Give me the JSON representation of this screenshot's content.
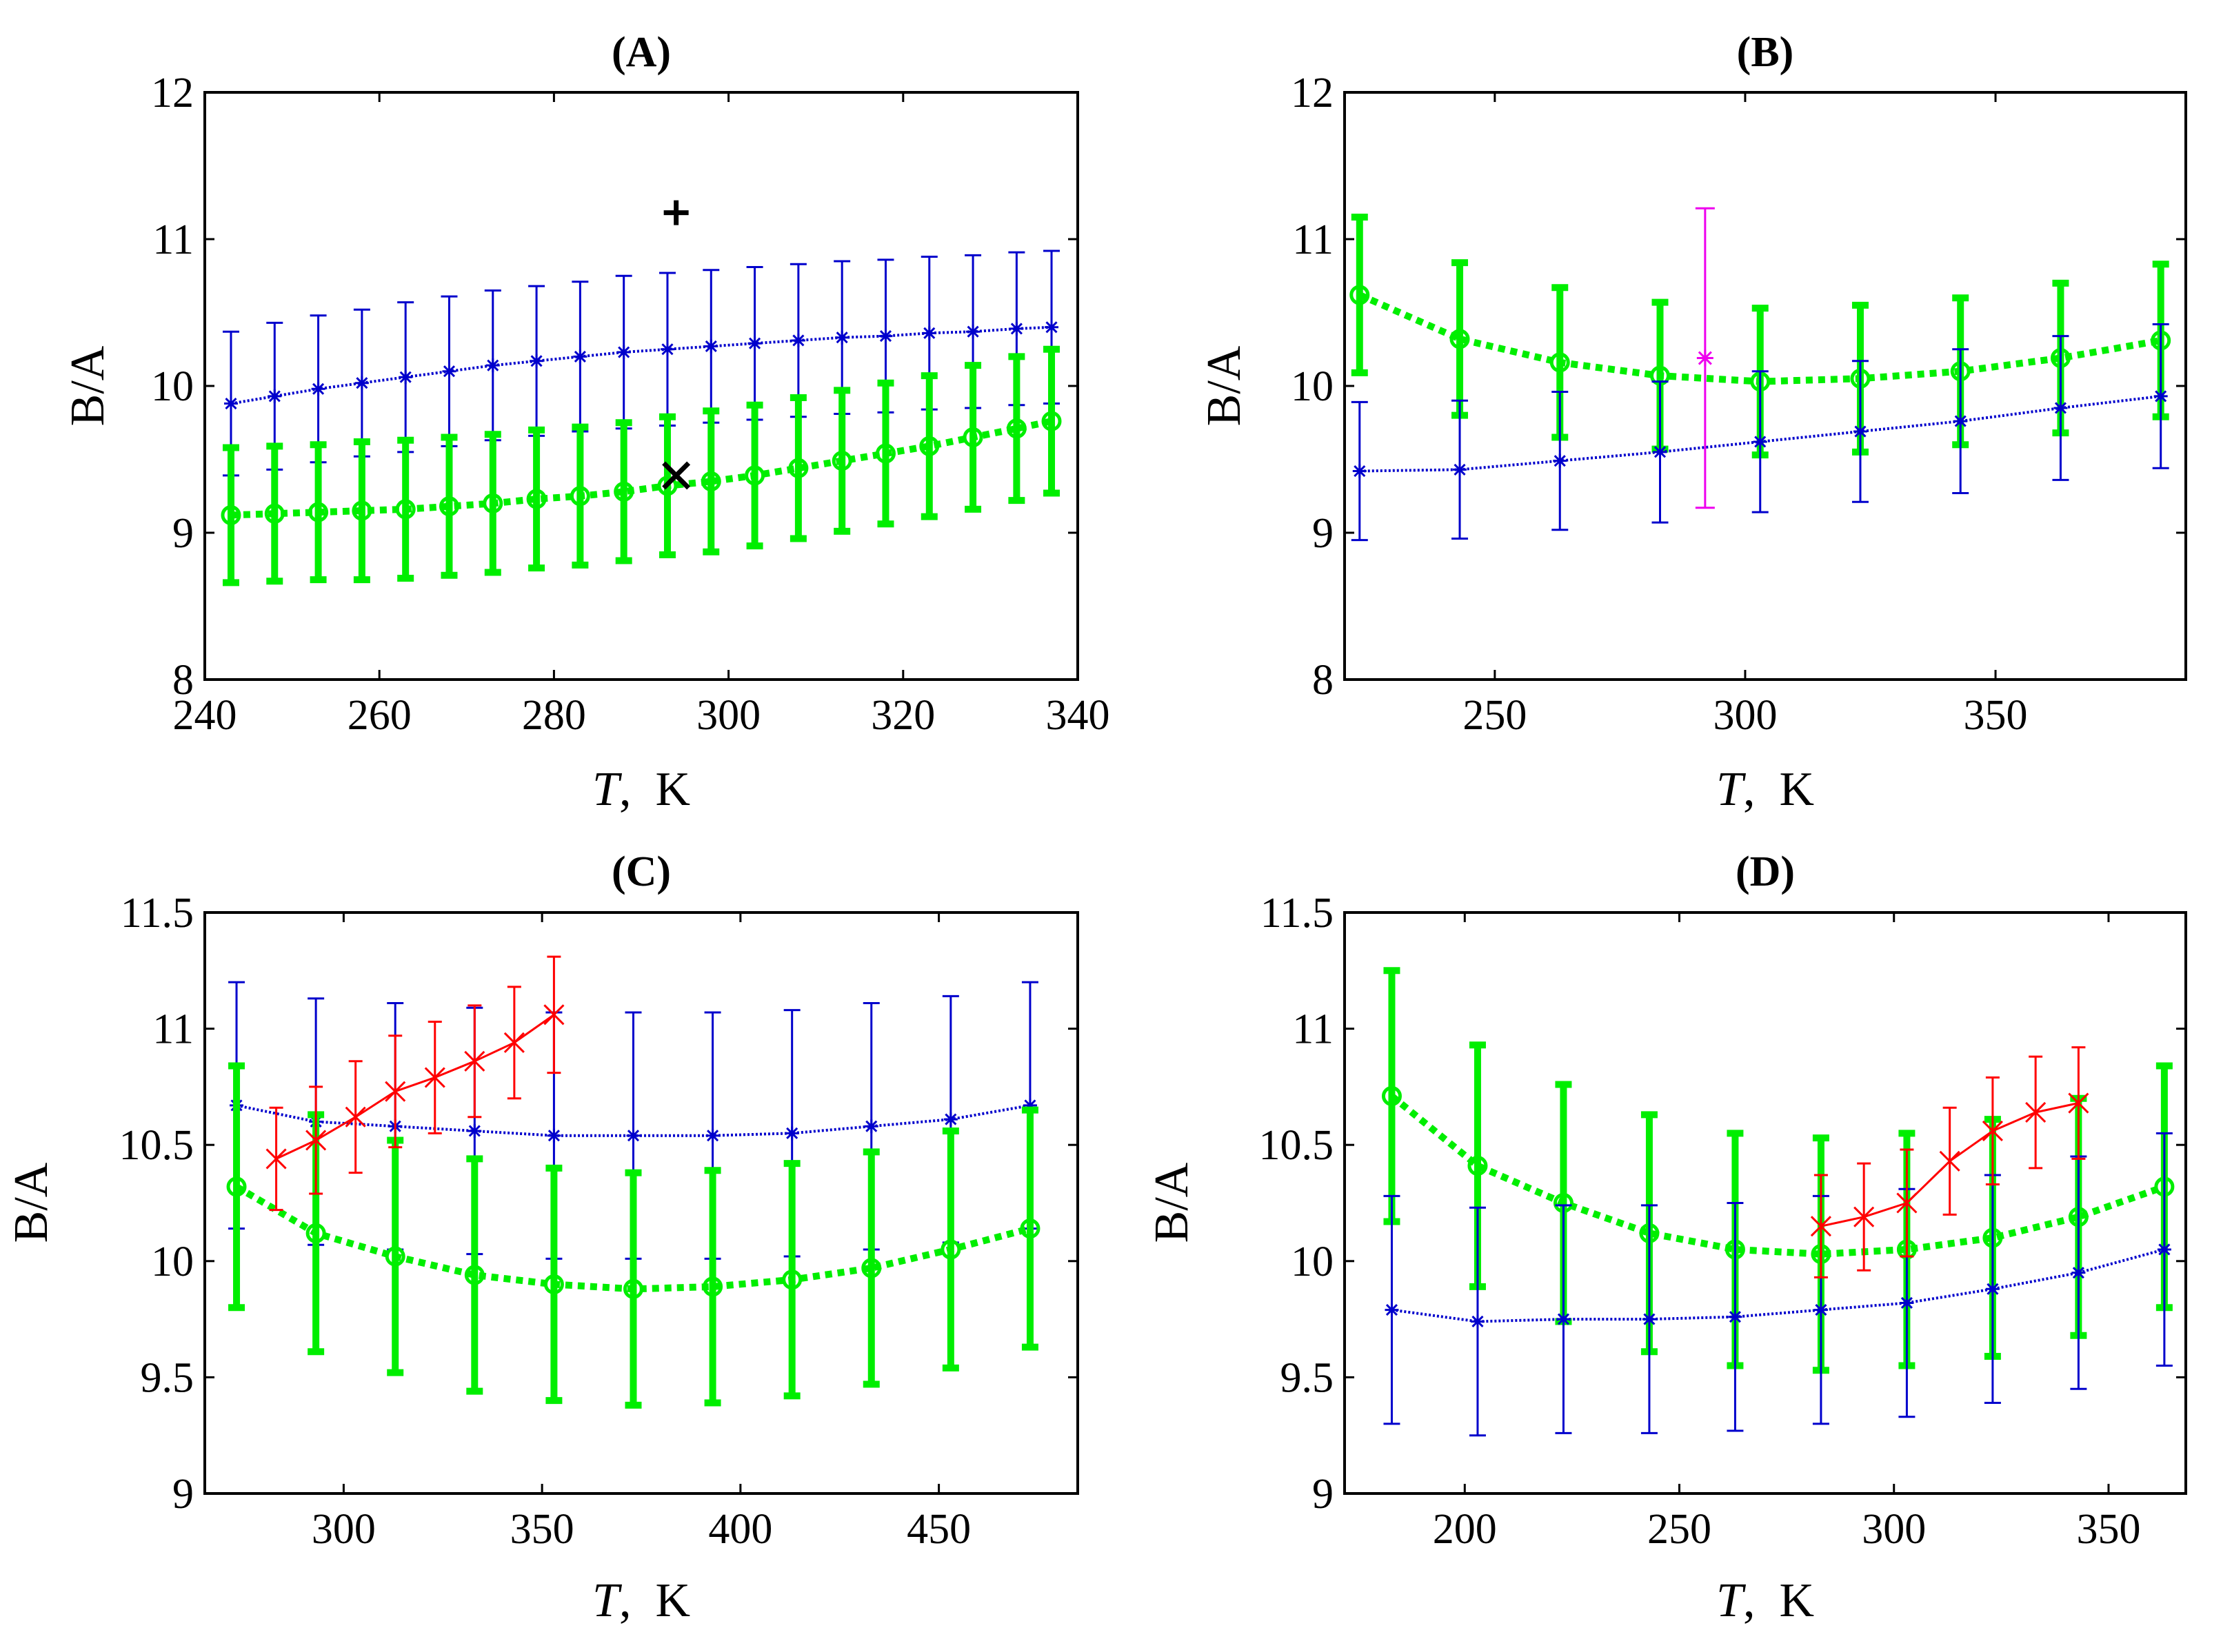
{
  "chart_data": [
    {
      "panel": "A",
      "type": "line",
      "title": "(A)",
      "xlabel_var": "T",
      "xlabel_unit": ",  K",
      "ylabel": "B/A",
      "xlim": [
        240,
        340
      ],
      "ylim": [
        8,
        12
      ],
      "xticks": [
        240,
        260,
        280,
        300,
        320,
        340
      ],
      "yticks": [
        8,
        9,
        10,
        11,
        12
      ],
      "series": [
        {
          "name": "blue",
          "color": "#0000cc",
          "style": "blue",
          "x": [
            243,
            248,
            253,
            258,
            263,
            268,
            273,
            278,
            283,
            288,
            293,
            298,
            303,
            308,
            313,
            318,
            323,
            328,
            333,
            337
          ],
          "y": [
            9.88,
            9.93,
            9.98,
            10.02,
            10.06,
            10.1,
            10.14,
            10.17,
            10.2,
            10.23,
            10.25,
            10.27,
            10.29,
            10.31,
            10.33,
            10.34,
            10.36,
            10.37,
            10.39,
            10.4
          ],
          "err": [
            0.49,
            0.5,
            0.5,
            0.5,
            0.51,
            0.51,
            0.51,
            0.51,
            0.51,
            0.52,
            0.52,
            0.52,
            0.52,
            0.52,
            0.52,
            0.52,
            0.52,
            0.52,
            0.52,
            0.52
          ]
        },
        {
          "name": "green",
          "color": "#00ee00",
          "style": "green",
          "x": [
            243,
            248,
            253,
            258,
            263,
            268,
            273,
            278,
            283,
            288,
            293,
            298,
            303,
            308,
            313,
            318,
            323,
            328,
            333,
            337
          ],
          "y": [
            9.12,
            9.13,
            9.14,
            9.15,
            9.16,
            9.18,
            9.2,
            9.23,
            9.25,
            9.28,
            9.32,
            9.35,
            9.39,
            9.44,
            9.49,
            9.54,
            9.59,
            9.65,
            9.71,
            9.76
          ],
          "err": [
            0.46,
            0.46,
            0.46,
            0.47,
            0.47,
            0.47,
            0.47,
            0.47,
            0.47,
            0.47,
            0.47,
            0.48,
            0.48,
            0.48,
            0.48,
            0.48,
            0.48,
            0.49,
            0.49,
            0.49
          ]
        }
      ],
      "markers": [
        {
          "symbol": "+",
          "color": "#000000",
          "x": 294,
          "y": 11.18
        },
        {
          "symbol": "×",
          "color": "#000000",
          "x": 294,
          "y": 9.39
        }
      ]
    },
    {
      "panel": "B",
      "type": "line",
      "title": "(B)",
      "xlabel_var": "T",
      "xlabel_unit": ",  K",
      "ylabel": "B/A",
      "xlim": [
        220,
        388
      ],
      "ylim": [
        8,
        12
      ],
      "xticks": [
        250,
        300,
        350
      ],
      "yticks": [
        8,
        9,
        10,
        11,
        12
      ],
      "series": [
        {
          "name": "green",
          "color": "#00ee00",
          "style": "green",
          "x": [
            223,
            243,
            263,
            283,
            303,
            323,
            343,
            363,
            383
          ],
          "y": [
            10.62,
            10.32,
            10.16,
            10.07,
            10.03,
            10.05,
            10.1,
            10.19,
            10.31
          ],
          "err": [
            0.53,
            0.52,
            0.51,
            0.5,
            0.5,
            0.5,
            0.5,
            0.51,
            0.52
          ]
        },
        {
          "name": "blue",
          "color": "#0000cc",
          "style": "blue",
          "x": [
            223,
            243,
            263,
            283,
            303,
            323,
            343,
            363,
            383
          ],
          "y": [
            9.42,
            9.43,
            9.49,
            9.55,
            9.62,
            9.69,
            9.76,
            9.85,
            9.93
          ],
          "err": [
            0.47,
            0.47,
            0.47,
            0.48,
            0.48,
            0.48,
            0.49,
            0.49,
            0.49
          ]
        },
        {
          "name": "magenta",
          "color": "#ee00ee",
          "style": "magenta",
          "x": [
            292
          ],
          "y": [
            10.19
          ],
          "err": [
            1.02
          ]
        }
      ],
      "markers": []
    },
    {
      "panel": "C",
      "type": "line",
      "title": "(C)",
      "xlabel_var": "T",
      "xlabel_unit": ",  K",
      "ylabel": "B/A",
      "xlim": [
        265,
        485
      ],
      "ylim": [
        9,
        11.5
      ],
      "xticks": [
        300,
        350,
        400,
        450
      ],
      "yticks": [
        9,
        9.5,
        10,
        10.5,
        11,
        11.5
      ],
      "series": [
        {
          "name": "blue",
          "color": "#0000cc",
          "style": "blue",
          "x": [
            273,
            293,
            313,
            333,
            353,
            373,
            393,
            413,
            433,
            453,
            473
          ],
          "y": [
            10.67,
            10.6,
            10.58,
            10.56,
            10.54,
            10.54,
            10.54,
            10.55,
            10.58,
            10.61,
            10.67
          ],
          "err": [
            0.53,
            0.53,
            0.53,
            0.53,
            0.53,
            0.53,
            0.53,
            0.53,
            0.53,
            0.53,
            0.53
          ]
        },
        {
          "name": "green",
          "color": "#00ee00",
          "style": "green",
          "x": [
            273,
            293,
            313,
            333,
            353,
            373,
            393,
            413,
            433,
            453,
            473
          ],
          "y": [
            10.32,
            10.12,
            10.02,
            9.94,
            9.9,
            9.88,
            9.89,
            9.92,
            9.97,
            10.05,
            10.14
          ],
          "err": [
            0.52,
            0.51,
            0.5,
            0.5,
            0.5,
            0.5,
            0.5,
            0.5,
            0.5,
            0.51,
            0.51
          ]
        },
        {
          "name": "red",
          "color": "#ff0000",
          "style": "red",
          "x": [
            283,
            293,
            303,
            313,
            323,
            333,
            343,
            353
          ],
          "y": [
            10.44,
            10.52,
            10.62,
            10.73,
            10.79,
            10.86,
            10.94,
            11.06
          ],
          "err": [
            0.22,
            0.23,
            0.24,
            0.24,
            0.24,
            0.24,
            0.24,
            0.25
          ]
        }
      ],
      "markers": []
    },
    {
      "panel": "D",
      "type": "line",
      "title": "(D)",
      "xlabel_var": "T",
      "xlabel_unit": ",  K",
      "ylabel": "B/A",
      "xlim": [
        172,
        368
      ],
      "ylim": [
        9,
        11.5
      ],
      "xticks": [
        200,
        250,
        300,
        350
      ],
      "yticks": [
        9,
        9.5,
        10,
        10.5,
        11,
        11.5
      ],
      "series": [
        {
          "name": "green",
          "color": "#00ee00",
          "style": "green",
          "x": [
            183,
            203,
            223,
            243,
            263,
            283,
            303,
            323,
            343,
            363
          ],
          "y": [
            10.71,
            10.41,
            10.25,
            10.12,
            10.05,
            10.03,
            10.05,
            10.1,
            10.19,
            10.32
          ],
          "err": [
            0.54,
            0.52,
            0.51,
            0.51,
            0.5,
            0.5,
            0.5,
            0.51,
            0.51,
            0.52
          ]
        },
        {
          "name": "blue",
          "color": "#0000cc",
          "style": "blue",
          "x": [
            183,
            203,
            223,
            243,
            263,
            283,
            303,
            323,
            343,
            363
          ],
          "y": [
            9.79,
            9.74,
            9.75,
            9.75,
            9.76,
            9.79,
            9.82,
            9.88,
            9.95,
            10.05
          ],
          "err": [
            0.49,
            0.49,
            0.49,
            0.49,
            0.49,
            0.49,
            0.49,
            0.49,
            0.5,
            0.5
          ]
        },
        {
          "name": "red",
          "color": "#ff0000",
          "style": "red",
          "x": [
            283,
            293,
            303,
            313,
            323,
            333,
            343
          ],
          "y": [
            10.15,
            10.19,
            10.25,
            10.43,
            10.56,
            10.64,
            10.68
          ],
          "err": [
            0.22,
            0.23,
            0.23,
            0.23,
            0.23,
            0.24,
            0.24
          ]
        }
      ],
      "markers": []
    }
  ]
}
